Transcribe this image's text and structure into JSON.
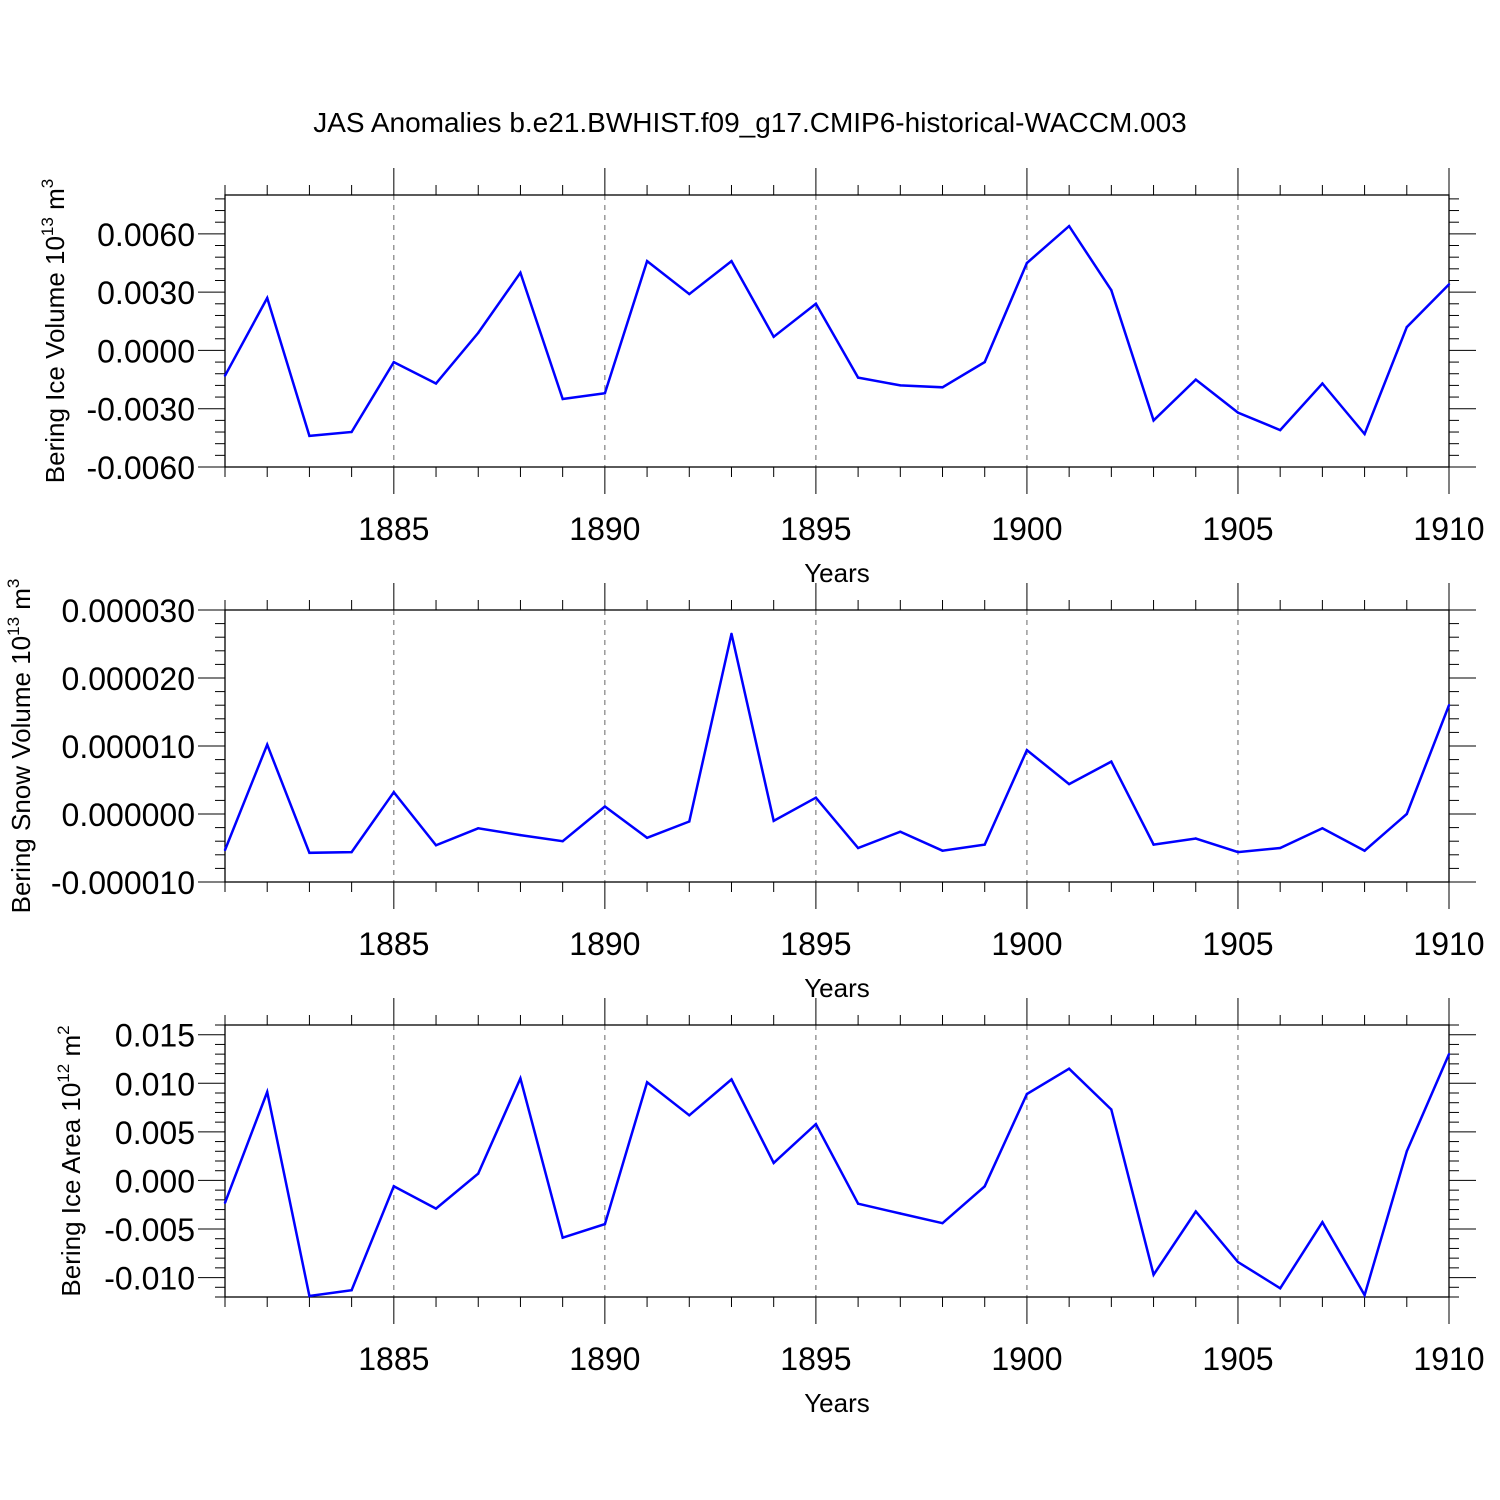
{
  "title": "JAS Anomalies b.e21.BWHIST.f09_g17.CMIP6-historical-WACCM.003",
  "colors": {
    "line": "#0000ff",
    "axis": "#000000",
    "grid": "#666666"
  },
  "chart_data": [
    {
      "type": "line",
      "xlabel": "Years",
      "ylabel": {
        "main": "Bering Ice Volume 10",
        "sup": "13",
        "unit": " m",
        "unit_sup": "3"
      },
      "xlim": [
        1881,
        1910
      ],
      "ylim": [
        -0.006,
        0.008
      ],
      "xticks": [
        1885,
        1890,
        1895,
        1900,
        1905,
        1910
      ],
      "xtick_labels": [
        "1885",
        "1890",
        "1895",
        "1900",
        "1905",
        "1910"
      ],
      "yticks": [
        0.006,
        0.003,
        0.0,
        -0.003,
        -0.006
      ],
      "ytick_labels": [
        "0.0060",
        "0.0030",
        "0.0000",
        "-0.0030",
        "-0.0060"
      ],
      "grid": "vertical-dashed",
      "x": [
        1881,
        1882,
        1883,
        1884,
        1885,
        1886,
        1887,
        1888,
        1889,
        1890,
        1891,
        1892,
        1893,
        1894,
        1895,
        1896,
        1897,
        1898,
        1899,
        1900,
        1901,
        1902,
        1903,
        1904,
        1905,
        1906,
        1907,
        1908,
        1909,
        1910
      ],
      "y": [
        -0.0013,
        0.0027,
        -0.0044,
        -0.0042,
        -0.0006,
        -0.0017,
        0.0009,
        0.004,
        -0.0025,
        -0.0022,
        0.0046,
        0.0029,
        0.0046,
        0.0007,
        0.0024,
        -0.0014,
        -0.0018,
        -0.0019,
        -0.0006,
        0.0045,
        0.0064,
        0.0031,
        -0.0036,
        -0.0015,
        -0.0032,
        -0.0041,
        -0.0017,
        -0.0043,
        0.0012,
        0.0034
      ]
    },
    {
      "type": "line",
      "xlabel": "Years",
      "ylabel": {
        "main": "Bering Snow Volume 10",
        "sup": "13",
        "unit": " m",
        "unit_sup": "3"
      },
      "xlim": [
        1881,
        1910
      ],
      "ylim": [
        -1e-05,
        3e-05
      ],
      "xticks": [
        1885,
        1890,
        1895,
        1900,
        1905,
        1910
      ],
      "xtick_labels": [
        "1885",
        "1890",
        "1895",
        "1900",
        "1905",
        "1910"
      ],
      "yticks": [
        3e-05,
        2e-05,
        1e-05,
        0.0,
        -1e-05
      ],
      "ytick_labels": [
        "0.000030",
        "0.000020",
        "0.000010",
        "0.000000",
        "-0.000010"
      ],
      "grid": "vertical-dashed",
      "x": [
        1881,
        1882,
        1883,
        1884,
        1885,
        1886,
        1887,
        1888,
        1889,
        1890,
        1891,
        1892,
        1893,
        1894,
        1895,
        1896,
        1897,
        1898,
        1899,
        1900,
        1901,
        1902,
        1903,
        1904,
        1905,
        1906,
        1907,
        1908,
        1909,
        1910
      ],
      "y": [
        -5.3e-06,
        1.02e-05,
        -5.7e-06,
        -5.6e-06,
        3.2e-06,
        -4.6e-06,
        -2.1e-06,
        -3.1e-06,
        -4e-06,
        1.1e-06,
        -3.5e-06,
        -1.1e-06,
        2.65e-05,
        -1e-06,
        2.4e-06,
        -5e-06,
        -2.6e-06,
        -5.4e-06,
        -4.5e-06,
        9.4e-06,
        4.4e-06,
        7.7e-06,
        -4.5e-06,
        -3.6e-06,
        -5.6e-06,
        -5e-06,
        -2.1e-06,
        -5.4e-06,
        0.0,
        1.6e-05
      ]
    },
    {
      "type": "line",
      "xlabel": "Years",
      "ylabel": {
        "main": "Bering Ice Area 10",
        "sup": "12",
        "unit": " m",
        "unit_sup": "2"
      },
      "xlim": [
        1881,
        1910
      ],
      "ylim": [
        -0.012,
        0.016
      ],
      "xticks": [
        1885,
        1890,
        1895,
        1900,
        1905,
        1910
      ],
      "xtick_labels": [
        "1885",
        "1890",
        "1895",
        "1900",
        "1905",
        "1910"
      ],
      "yticks": [
        0.015,
        0.01,
        0.005,
        0.0,
        -0.005,
        -0.01
      ],
      "ytick_labels": [
        "0.015",
        "0.010",
        "0.005",
        "0.000",
        "-0.005",
        "-0.010"
      ],
      "grid": "vertical-dashed",
      "x": [
        1881,
        1882,
        1883,
        1884,
        1885,
        1886,
        1887,
        1888,
        1889,
        1890,
        1891,
        1892,
        1893,
        1894,
        1895,
        1896,
        1897,
        1898,
        1899,
        1900,
        1901,
        1902,
        1903,
        1904,
        1905,
        1906,
        1907,
        1908,
        1909,
        1910
      ],
      "y": [
        -0.0023,
        0.0091,
        -0.0119,
        -0.0113,
        -0.0006,
        -0.0029,
        0.0007,
        0.0105,
        -0.0059,
        -0.0045,
        0.0101,
        0.0067,
        0.0104,
        0.0018,
        0.0058,
        -0.0024,
        -0.0034,
        -0.0044,
        -0.0006,
        0.0089,
        0.0115,
        0.0073,
        -0.0097,
        -0.0032,
        -0.0084,
        -0.0111,
        -0.0043,
        -0.0118,
        0.003,
        0.013
      ]
    }
  ]
}
